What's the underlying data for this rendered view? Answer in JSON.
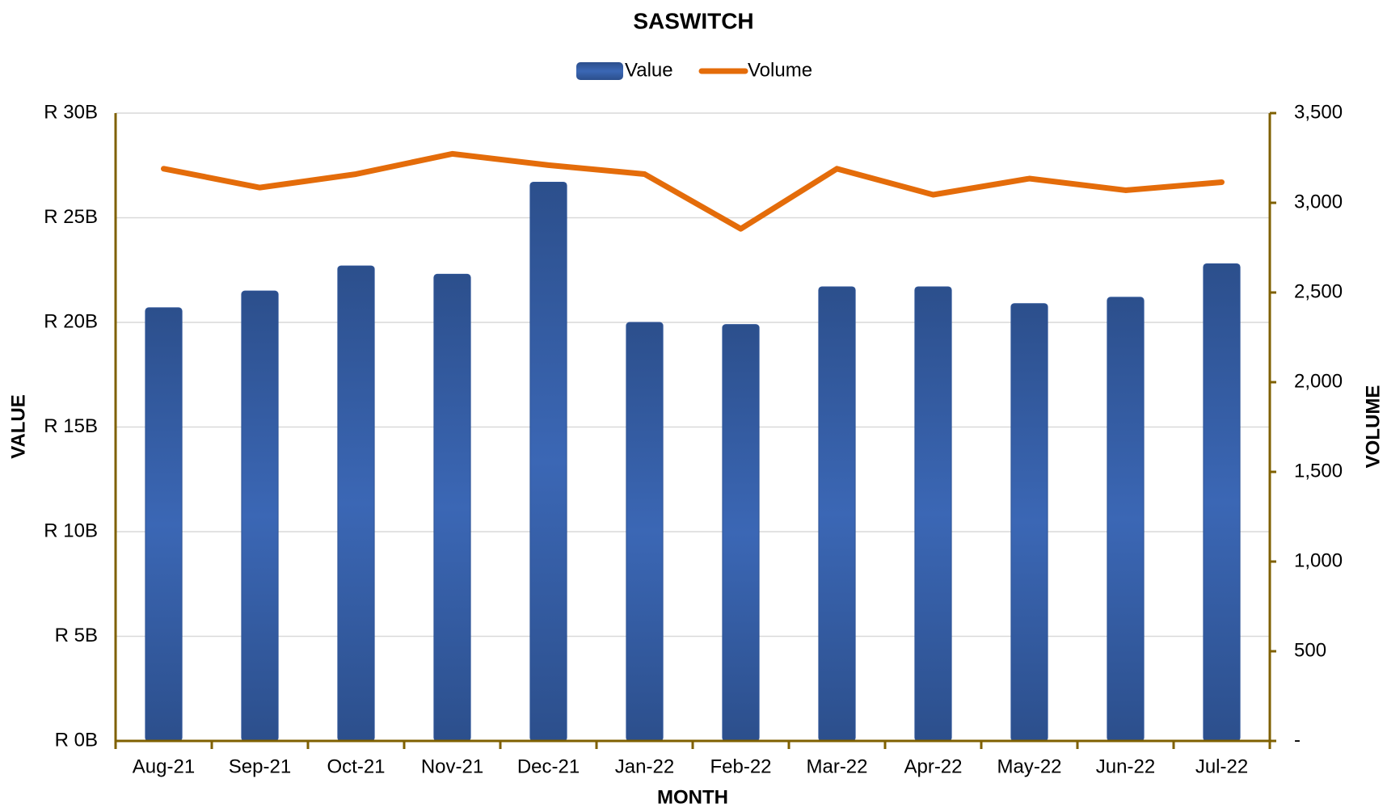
{
  "chart_data": {
    "type": "bar_line",
    "title": "SASWITCH",
    "x_label": "MONTH",
    "y_label": "VALUE",
    "y2_label": "VOLUME",
    "categories": [
      "Aug-21",
      "Sep-21",
      "Oct-21",
      "Nov-21",
      "Dec-21",
      "Jan-22",
      "Feb-22",
      "Mar-22",
      "Apr-22",
      "May-22",
      "Jun-22",
      "Jul-22"
    ],
    "series": [
      {
        "name": "Value",
        "type": "bar",
        "color": "#2f5597",
        "values": [
          20.7,
          21.5,
          22.7,
          22.3,
          26.7,
          20.0,
          19.9,
          21.7,
          21.7,
          20.9,
          21.2,
          22.8
        ]
      },
      {
        "name": "Volume",
        "type": "line",
        "color": "#e46c0a",
        "axis": "y2",
        "values": [
          3190,
          3085,
          3160,
          3273,
          3210,
          3160,
          2855,
          3190,
          3045,
          3135,
          3070,
          3115
        ]
      }
    ],
    "ylim": [
      0,
      30
    ],
    "yticks": [
      {
        "value": 0,
        "label": "R 0B"
      },
      {
        "value": 5,
        "label": "R 5B"
      },
      {
        "value": 10,
        "label": "R 10B"
      },
      {
        "value": 15,
        "label": "R 15B"
      },
      {
        "value": 20,
        "label": "R 20B"
      },
      {
        "value": 25,
        "label": "R 25B"
      },
      {
        "value": 30,
        "label": "R 30B"
      }
    ],
    "y2lim": [
      0,
      3500
    ],
    "y2ticks": [
      {
        "value": 0,
        "label": "-"
      },
      500,
      {
        "value": 1000,
        "label": "1,000"
      },
      {
        "value": 1500,
        "label": "1,500"
      },
      {
        "value": 2000,
        "label": "2,000"
      },
      {
        "value": 2500,
        "label": "2,500"
      },
      {
        "value": 3000,
        "label": "3,000"
      },
      {
        "value": 3500,
        "label": "3,500"
      }
    ],
    "grid": true,
    "axis_color": "#7f6000",
    "legend": "top"
  }
}
